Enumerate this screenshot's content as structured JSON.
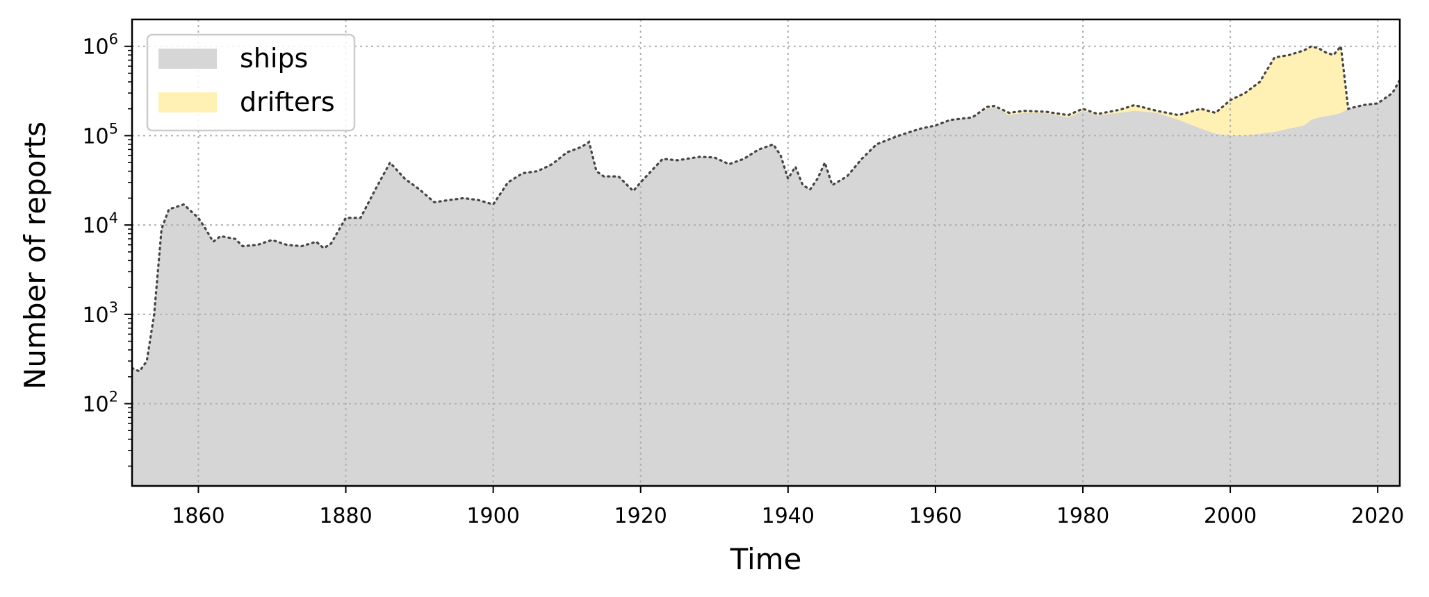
{
  "chart_data": {
    "type": "area",
    "xlabel": "Time",
    "ylabel": "Number of reports",
    "xlim": [
      1851,
      2023
    ],
    "ylim": [
      12,
      2000000
    ],
    "yscale": "log",
    "grid": true,
    "legend_position": "top-left",
    "x_ticks": [
      1860,
      1880,
      1900,
      1920,
      1940,
      1960,
      1980,
      2000,
      2020
    ],
    "y_ticks": [
      {
        "value": 100,
        "base": "10",
        "exp": "2"
      },
      {
        "value": 1000,
        "base": "10",
        "exp": "3"
      },
      {
        "value": 10000,
        "base": "10",
        "exp": "4"
      },
      {
        "value": 100000,
        "base": "10",
        "exp": "5"
      },
      {
        "value": 1000000,
        "base": "10",
        "exp": "6"
      }
    ],
    "x": [
      1851,
      1852,
      1853,
      1854,
      1855,
      1856,
      1858,
      1860,
      1861,
      1862,
      1863,
      1865,
      1866,
      1868,
      1870,
      1872,
      1874,
      1876,
      1877,
      1878,
      1880,
      1882,
      1884,
      1886,
      1888,
      1890,
      1892,
      1894,
      1896,
      1898,
      1900,
      1902,
      1904,
      1906,
      1908,
      1910,
      1912,
      1913,
      1914,
      1915,
      1917,
      1919,
      1920,
      1922,
      1923,
      1925,
      1928,
      1930,
      1932,
      1934,
      1936,
      1938,
      1939,
      1940,
      1941,
      1942,
      1943,
      1944,
      1945,
      1946,
      1948,
      1950,
      1952,
      1955,
      1958,
      1960,
      1962,
      1965,
      1967,
      1968,
      1970,
      1972,
      1975,
      1978,
      1980,
      1982,
      1985,
      1987,
      1990,
      1993,
      1996,
      1998,
      2000,
      2002,
      2004,
      2006,
      2008,
      2010,
      2011,
      2012,
      2013,
      2014,
      2015,
      2016,
      2018,
      2020,
      2022,
      2023
    ],
    "series": [
      {
        "name": "ships",
        "color": "#d6d6d6",
        "values": [
          250,
          230,
          300,
          1000,
          9000,
          15000,
          17000,
          12000,
          9000,
          6500,
          7500,
          7000,
          5800,
          6000,
          6800,
          6000,
          5800,
          6500,
          5500,
          6200,
          12000,
          12000,
          25000,
          50000,
          33000,
          25000,
          18000,
          19000,
          20000,
          19000,
          17000,
          30000,
          38000,
          40000,
          48000,
          65000,
          75000,
          85000,
          40000,
          35000,
          35000,
          24000,
          30000,
          45000,
          55000,
          53000,
          58000,
          57000,
          48000,
          55000,
          70000,
          80000,
          60000,
          33000,
          45000,
          28000,
          25000,
          33000,
          50000,
          28000,
          35000,
          55000,
          80000,
          100000,
          120000,
          130000,
          150000,
          160000,
          200000,
          210000,
          170000,
          180000,
          180000,
          160000,
          190000,
          170000,
          180000,
          190000,
          180000,
          150000,
          120000,
          105000,
          100000,
          100000,
          105000,
          110000,
          120000,
          130000,
          150000,
          160000,
          165000,
          170000,
          180000,
          200000,
          220000,
          230000,
          300000,
          420000
        ]
      },
      {
        "name": "drifters",
        "color": "#fff0b3",
        "values": [
          250,
          230,
          300,
          1000,
          9000,
          15000,
          17000,
          12000,
          9000,
          6500,
          7500,
          7000,
          5800,
          6000,
          6800,
          6000,
          5800,
          6500,
          5500,
          6200,
          12000,
          12000,
          25000,
          50000,
          33000,
          25000,
          18000,
          19000,
          20000,
          19000,
          17000,
          30000,
          38000,
          40000,
          48000,
          65000,
          75000,
          85000,
          40000,
          35000,
          35000,
          24000,
          30000,
          45000,
          55000,
          53000,
          58000,
          57000,
          48000,
          55000,
          70000,
          80000,
          60000,
          33000,
          45000,
          28000,
          25000,
          33000,
          50000,
          28000,
          35000,
          55000,
          80000,
          100000,
          120000,
          130000,
          150000,
          160000,
          210000,
          215000,
          180000,
          190000,
          185000,
          170000,
          200000,
          175000,
          195000,
          220000,
          190000,
          170000,
          200000,
          180000,
          250000,
          300000,
          400000,
          750000,
          800000,
          900000,
          1000000,
          950000,
          850000,
          800000,
          1000000,
          190000,
          220000,
          230000,
          300000,
          420000
        ]
      }
    ]
  }
}
